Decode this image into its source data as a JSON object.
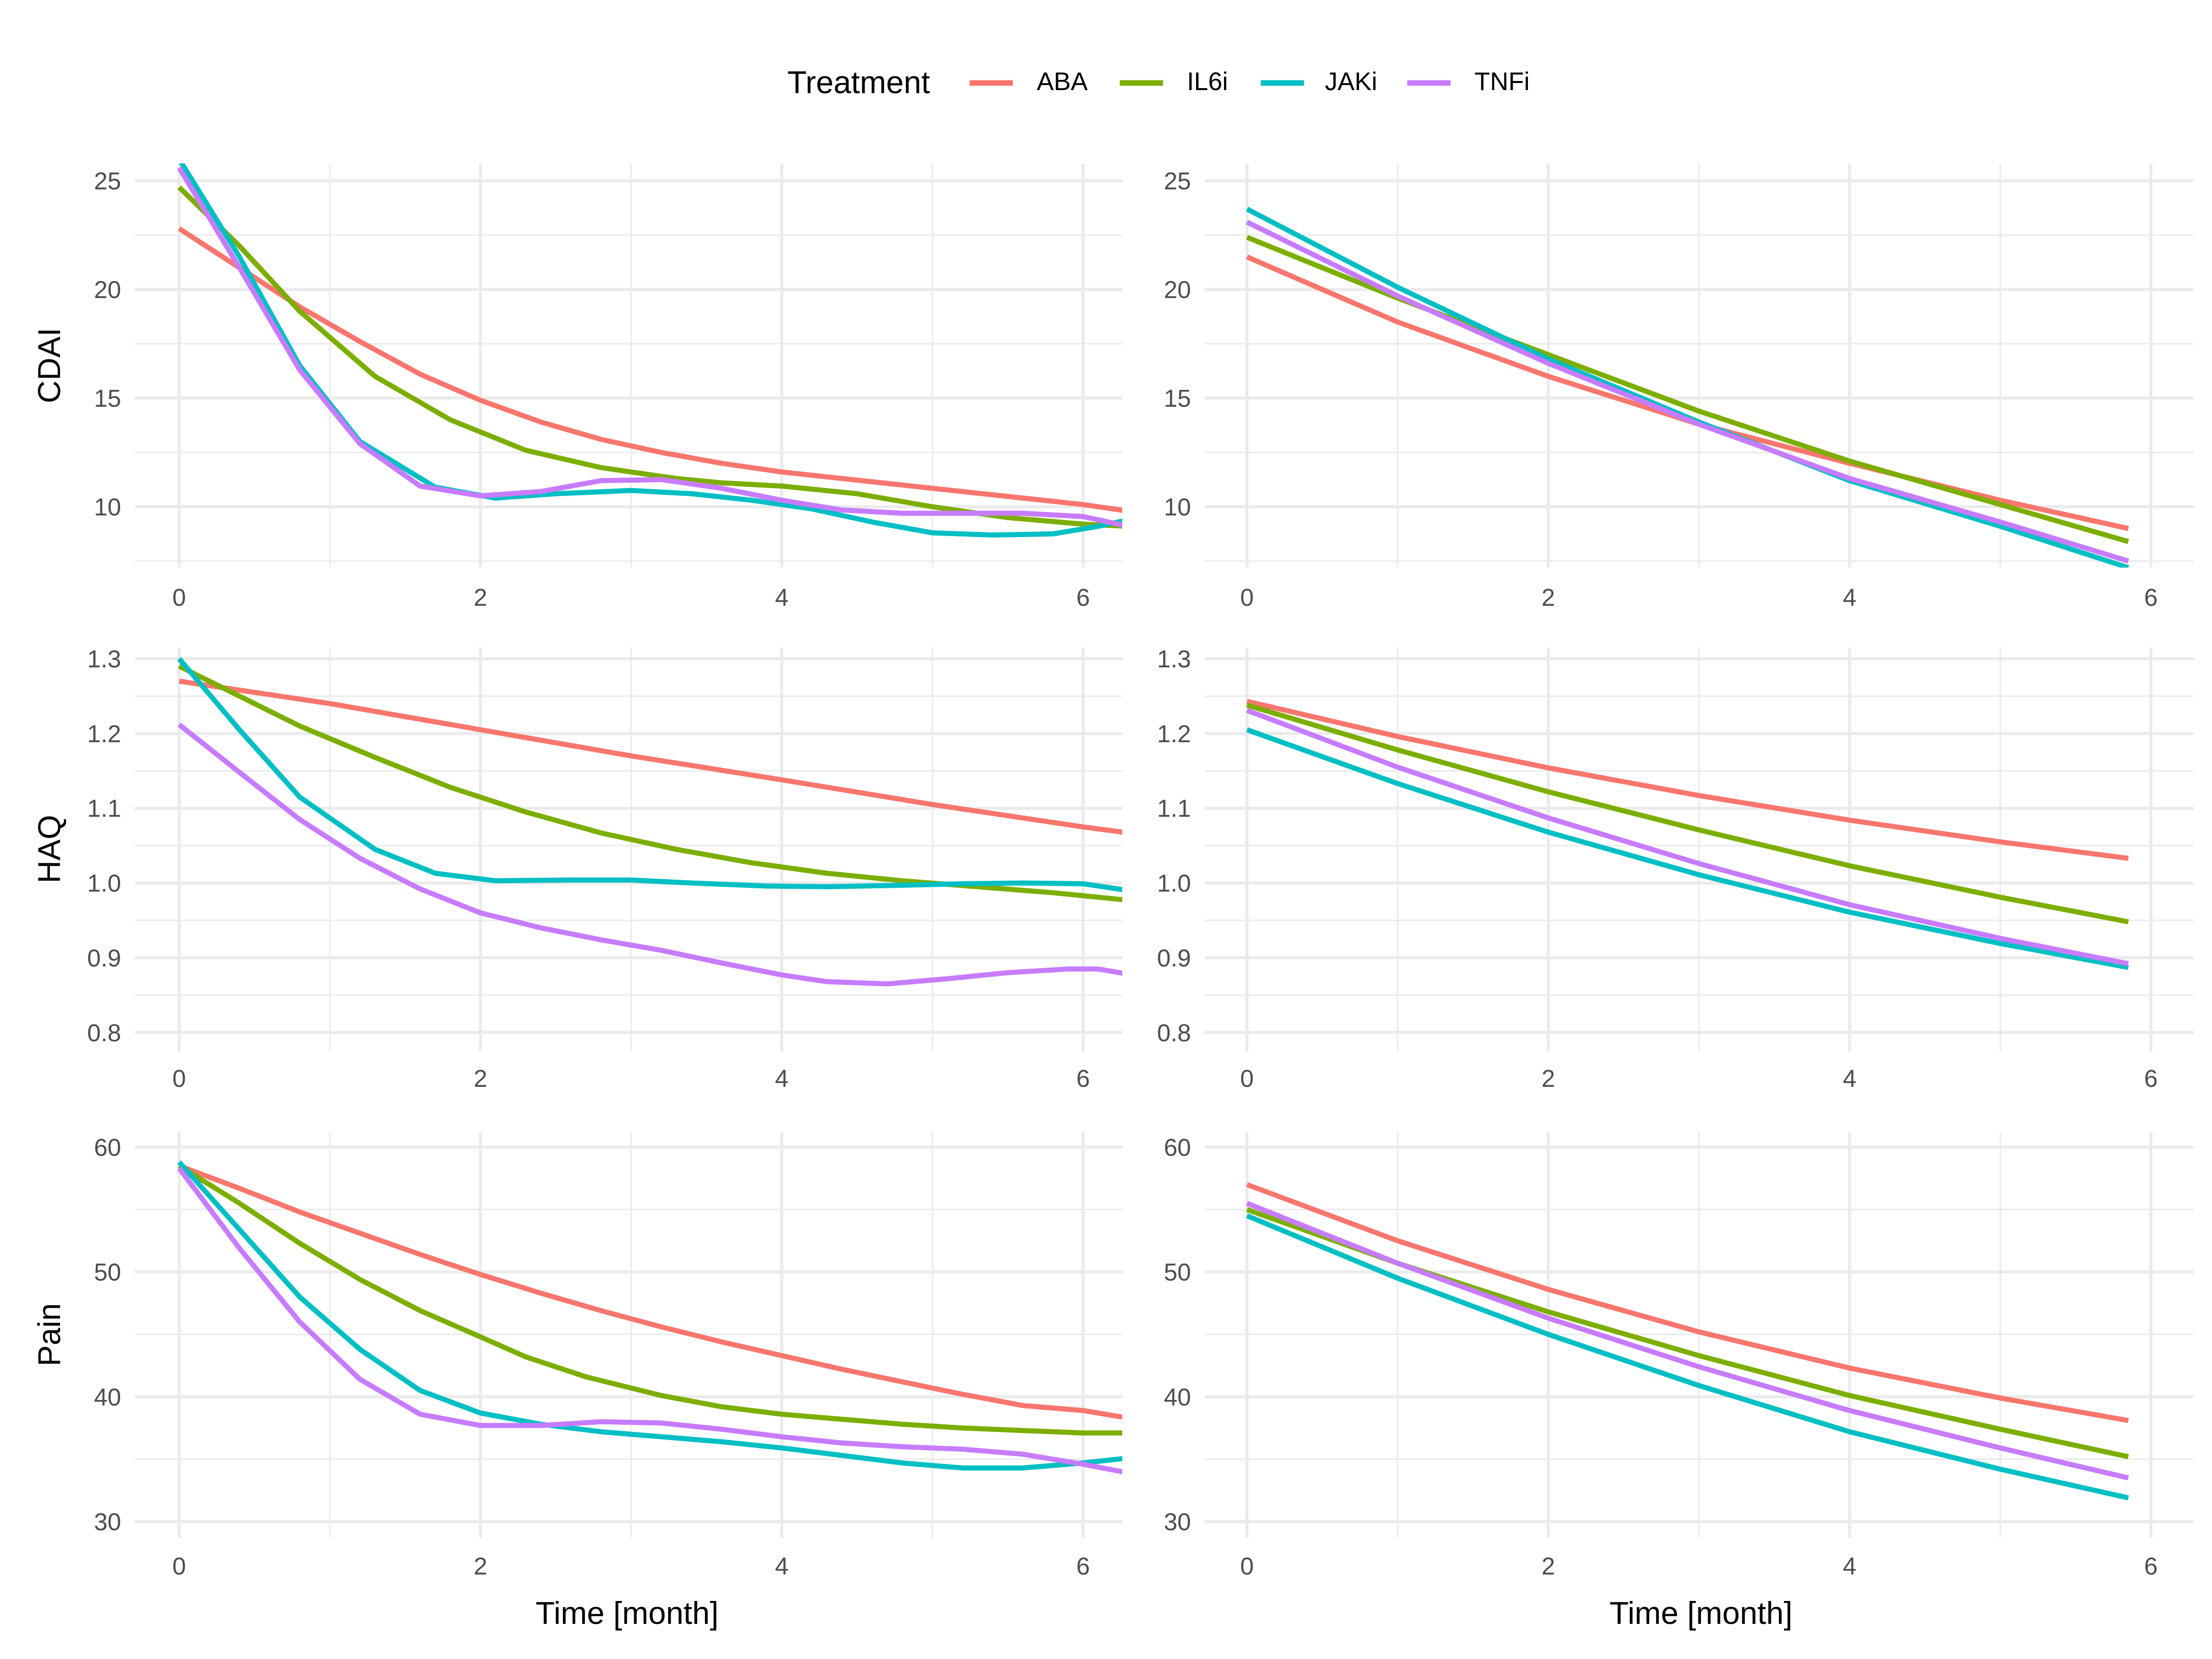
{
  "chart_data": {
    "type": "line",
    "legend": {
      "title": "Treatment",
      "position": "top",
      "entries": [
        {
          "name": "ABA",
          "color": "#F8766D"
        },
        {
          "name": "IL6i",
          "color": "#7CAE00"
        },
        {
          "name": "JAKi",
          "color": "#00BFC4"
        },
        {
          "name": "TNFi",
          "color": "#C77CFF"
        }
      ]
    },
    "xlabel": "Time [month]",
    "x_ticks": [
      "0",
      "2",
      "4",
      "6"
    ],
    "grid": true,
    "panels": [
      {
        "row": 1,
        "col": 1,
        "ylabel": "CDAI",
        "xlim": [
          -0.3,
          6.3
        ],
        "ylim": [
          7.2,
          25.8
        ],
        "y_ticks": [
          "10",
          "15",
          "20",
          "25"
        ],
        "y_tick_values": [
          10,
          15,
          20,
          25
        ],
        "series": [
          {
            "name": "ABA",
            "x": [
              0,
              0.4,
              0.8,
              1.2,
              1.6,
              2.0,
              2.4,
              2.8,
              3.2,
              3.6,
              4.0,
              4.4,
              4.8,
              5.2,
              5.6,
              6.0,
              6.3
            ],
            "y": [
              22.8,
              21.0,
              19.2,
              17.6,
              16.1,
              14.9,
              13.9,
              13.1,
              12.5,
              12.0,
              11.6,
              11.3,
              11.0,
              10.7,
              10.4,
              10.1,
              9.8
            ]
          },
          {
            "name": "IL6i",
            "x": [
              0,
              0.4,
              0.8,
              1.3,
              1.8,
              2.3,
              2.8,
              3.3,
              3.6,
              4.0,
              4.5,
              5.0,
              5.5,
              6.0,
              6.3
            ],
            "y": [
              24.7,
              22.0,
              19.0,
              16.0,
              14.0,
              12.6,
              11.8,
              11.3,
              11.1,
              10.95,
              10.6,
              10.0,
              9.5,
              9.2,
              9.1
            ]
          },
          {
            "name": "JAKi",
            "x": [
              0,
              0.4,
              0.8,
              1.2,
              1.7,
              2.1,
              2.5,
              3.0,
              3.4,
              3.8,
              4.2,
              4.6,
              5.0,
              5.4,
              5.8,
              6.1,
              6.3
            ],
            "y": [
              26.0,
              21.5,
              16.5,
              13.0,
              10.9,
              10.4,
              10.6,
              10.75,
              10.6,
              10.3,
              9.9,
              9.3,
              8.8,
              8.7,
              8.75,
              9.1,
              9.4
            ]
          },
          {
            "name": "TNFi",
            "x": [
              0,
              0.4,
              0.8,
              1.2,
              1.6,
              2.0,
              2.4,
              2.8,
              3.2,
              3.6,
              4.0,
              4.4,
              4.8,
              5.2,
              5.6,
              6.0,
              6.3
            ],
            "y": [
              25.6,
              21.0,
              16.3,
              12.9,
              10.95,
              10.5,
              10.7,
              11.2,
              11.25,
              10.85,
              10.3,
              9.85,
              9.7,
              9.7,
              9.7,
              9.55,
              9.1
            ]
          }
        ]
      },
      {
        "row": 1,
        "col": 2,
        "ylabel": "",
        "xlim": [
          -0.3,
          6.3
        ],
        "ylim": [
          7.2,
          25.8
        ],
        "y_ticks": [
          "10",
          "15",
          "20",
          "25"
        ],
        "y_tick_values": [
          10,
          15,
          20,
          25
        ],
        "series": [
          {
            "name": "ABA",
            "x": [
              0,
              1,
              2,
              3,
              4,
              5,
              5.85
            ],
            "y": [
              21.5,
              18.5,
              16.0,
              13.8,
              12.0,
              10.3,
              9.0
            ]
          },
          {
            "name": "IL6i",
            "x": [
              0,
              1,
              2,
              3,
              4,
              5,
              5.85
            ],
            "y": [
              22.4,
              19.6,
              17.0,
              14.4,
              12.1,
              10.1,
              8.4
            ]
          },
          {
            "name": "JAKi",
            "x": [
              0,
              1,
              2,
              3,
              4,
              5,
              5.85
            ],
            "y": [
              23.7,
              20.1,
              16.8,
              13.9,
              11.2,
              9.1,
              7.2
            ]
          },
          {
            "name": "TNFi",
            "x": [
              0,
              1,
              2,
              3,
              4,
              5,
              5.85
            ],
            "y": [
              23.1,
              19.7,
              16.6,
              13.8,
              11.3,
              9.3,
              7.5
            ]
          }
        ]
      },
      {
        "row": 2,
        "col": 1,
        "ylabel": "HAQ",
        "xlim": [
          -0.3,
          6.3
        ],
        "ylim": [
          0.775,
          1.315
        ],
        "y_ticks": [
          "0.8",
          "0.9",
          "1.0",
          "1.1",
          "1.2",
          "1.3"
        ],
        "y_tick_values": [
          0.8,
          0.9,
          1.0,
          1.1,
          1.2,
          1.3
        ],
        "series": [
          {
            "name": "ABA",
            "x": [
              0,
              1,
              2,
              3,
              4,
              5,
              6,
              6.3
            ],
            "y": [
              1.27,
              1.24,
              1.205,
              1.17,
              1.138,
              1.105,
              1.075,
              1.067
            ]
          },
          {
            "name": "IL6i",
            "x": [
              0,
              0.4,
              0.8,
              1.3,
              1.8,
              2.3,
              2.8,
              3.3,
              3.8,
              4.3,
              4.8,
              5.3,
              5.8,
              6.3
            ],
            "y": [
              1.29,
              1.25,
              1.21,
              1.168,
              1.128,
              1.095,
              1.067,
              1.045,
              1.027,
              1.013,
              1.003,
              0.995,
              0.987,
              0.977
            ]
          },
          {
            "name": "JAKi",
            "x": [
              0,
              0.4,
              0.8,
              1.3,
              1.7,
              2.1,
              2.6,
              3.0,
              3.4,
              3.9,
              4.3,
              4.8,
              5.2,
              5.6,
              6.0,
              6.3
            ],
            "y": [
              1.3,
              1.205,
              1.115,
              1.045,
              1.013,
              1.003,
              1.004,
              1.004,
              1.0,
              0.996,
              0.995,
              0.997,
              0.999,
              1.0,
              0.999,
              0.99
            ]
          },
          {
            "name": "TNFi",
            "x": [
              0,
              0.4,
              0.8,
              1.2,
              1.6,
              2.0,
              2.4,
              2.8,
              3.2,
              3.6,
              4.0,
              4.3,
              4.7,
              5.1,
              5.5,
              5.9,
              6.1,
              6.3
            ],
            "y": [
              1.212,
              1.148,
              1.085,
              1.033,
              0.992,
              0.96,
              0.94,
              0.924,
              0.91,
              0.893,
              0.877,
              0.868,
              0.865,
              0.872,
              0.88,
              0.885,
              0.885,
              0.878
            ]
          }
        ]
      },
      {
        "row": 2,
        "col": 2,
        "ylabel": "",
        "xlim": [
          -0.3,
          6.3
        ],
        "ylim": [
          0.775,
          1.315
        ],
        "y_ticks": [
          "0.8",
          "0.9",
          "1.0",
          "1.1",
          "1.2",
          "1.3"
        ],
        "y_tick_values": [
          0.8,
          0.9,
          1.0,
          1.1,
          1.2,
          1.3
        ],
        "series": [
          {
            "name": "ABA",
            "x": [
              0,
              1,
              2,
              3,
              4,
              5,
              5.85
            ],
            "y": [
              1.243,
              1.196,
              1.154,
              1.117,
              1.084,
              1.055,
              1.033
            ]
          },
          {
            "name": "IL6i",
            "x": [
              0,
              1,
              2,
              3,
              4,
              5,
              5.85
            ],
            "y": [
              1.238,
              1.178,
              1.122,
              1.071,
              1.023,
              0.981,
              0.948
            ]
          },
          {
            "name": "JAKi",
            "x": [
              0,
              1,
              2,
              3,
              4,
              5,
              5.85
            ],
            "y": [
              1.205,
              1.133,
              1.068,
              1.011,
              0.961,
              0.919,
              0.887
            ]
          },
          {
            "name": "TNFi",
            "x": [
              0,
              1,
              2,
              3,
              4,
              5,
              5.85
            ],
            "y": [
              1.231,
              1.155,
              1.087,
              1.026,
              0.971,
              0.926,
              0.892
            ]
          }
        ]
      },
      {
        "row": 3,
        "col": 1,
        "ylabel": "Pain",
        "xlim": [
          -0.3,
          6.3
        ],
        "ylim": [
          28.7,
          61.2
        ],
        "y_ticks": [
          "30",
          "40",
          "50",
          "60"
        ],
        "y_tick_values": [
          30,
          40,
          50,
          60
        ],
        "series": [
          {
            "name": "ABA",
            "x": [
              0,
              0.4,
              0.8,
              1.2,
              1.6,
              2.0,
              2.4,
              2.8,
              3.2,
              3.6,
              4.0,
              4.4,
              4.8,
              5.2,
              5.6,
              6.0,
              6.3
            ],
            "y": [
              58.5,
              56.7,
              54.8,
              53.1,
              51.4,
              49.8,
              48.3,
              46.9,
              45.6,
              44.4,
              43.3,
              42.2,
              41.2,
              40.2,
              39.3,
              38.9,
              38.3
            ]
          },
          {
            "name": "IL6i",
            "x": [
              0,
              0.4,
              0.8,
              1.2,
              1.6,
              2.0,
              2.3,
              2.7,
              3.2,
              3.6,
              4.0,
              4.4,
              4.8,
              5.2,
              5.6,
              6.0,
              6.3
            ],
            "y": [
              58.5,
              55.5,
              52.3,
              49.4,
              46.9,
              44.8,
              43.2,
              41.6,
              40.1,
              39.2,
              38.6,
              38.2,
              37.8,
              37.5,
              37.3,
              37.1,
              37.1
            ]
          },
          {
            "name": "JAKi",
            "x": [
              0,
              0.4,
              0.8,
              1.2,
              1.6,
              2.0,
              2.4,
              2.8,
              3.2,
              3.6,
              4.0,
              4.4,
              4.8,
              5.2,
              5.6,
              6.0,
              6.3
            ],
            "y": [
              58.8,
              53.4,
              48.0,
              43.8,
              40.5,
              38.7,
              37.8,
              37.2,
              36.8,
              36.4,
              35.9,
              35.3,
              34.7,
              34.3,
              34.3,
              34.7,
              35.1
            ]
          },
          {
            "name": "TNFi",
            "x": [
              0,
              0.4,
              0.8,
              1.2,
              1.6,
              2.0,
              2.4,
              2.8,
              3.2,
              3.6,
              4.0,
              4.4,
              4.8,
              5.2,
              5.6,
              6.0,
              6.3
            ],
            "y": [
              58.3,
              51.9,
              46.0,
              41.4,
              38.6,
              37.7,
              37.7,
              38.0,
              37.9,
              37.4,
              36.8,
              36.3,
              36.0,
              35.8,
              35.4,
              34.6,
              33.9
            ]
          }
        ]
      },
      {
        "row": 3,
        "col": 2,
        "ylabel": "",
        "xlim": [
          -0.3,
          6.3
        ],
        "ylim": [
          28.7,
          61.2
        ],
        "y_ticks": [
          "30",
          "40",
          "50",
          "60"
        ],
        "y_tick_values": [
          30,
          40,
          50,
          60
        ],
        "series": [
          {
            "name": "ABA",
            "x": [
              0,
              1,
              2,
              3,
              4,
              5,
              5.85
            ],
            "y": [
              57.0,
              52.5,
              48.6,
              45.2,
              42.3,
              39.9,
              38.1
            ]
          },
          {
            "name": "IL6i",
            "x": [
              0,
              1,
              2,
              3,
              4,
              5,
              5.85
            ],
            "y": [
              55.0,
              50.7,
              46.8,
              43.3,
              40.1,
              37.4,
              35.2
            ]
          },
          {
            "name": "JAKi",
            "x": [
              0,
              1,
              2,
              3,
              4,
              5,
              5.85
            ],
            "y": [
              54.5,
              49.5,
              45.0,
              40.9,
              37.2,
              34.2,
              31.9
            ]
          },
          {
            "name": "TNFi",
            "x": [
              0,
              1,
              2,
              3,
              4,
              5,
              5.85
            ],
            "y": [
              55.5,
              50.7,
              46.3,
              42.4,
              38.9,
              35.9,
              33.5
            ]
          }
        ]
      }
    ]
  }
}
